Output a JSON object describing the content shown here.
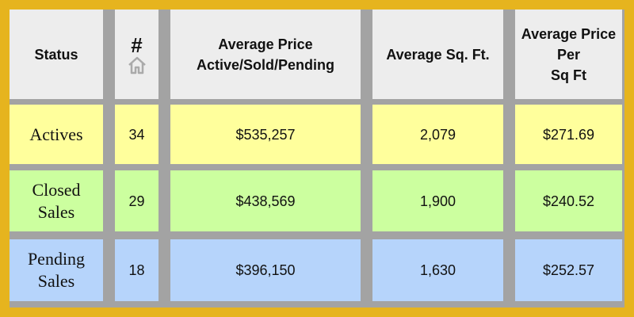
{
  "table": {
    "header": [
      [
        "Status"
      ],
      [
        "#"
      ],
      [
        "Average Price",
        "Active/Sold/Pending"
      ],
      [
        "Average Sq. Ft."
      ],
      [
        "Average Price",
        "Per",
        "Sq Ft"
      ]
    ],
    "rows": [
      [
        [
          "Actives"
        ],
        "34",
        "$535,257",
        "2,079",
        "$271.69"
      ],
      [
        [
          "Closed",
          "Sales"
        ],
        "29",
        "$438,569",
        "1,900",
        "$240.52"
      ],
      [
        [
          "Pending",
          "Sales"
        ],
        "18",
        "$396,150",
        "1,630",
        "$252.57"
      ]
    ]
  }
}
